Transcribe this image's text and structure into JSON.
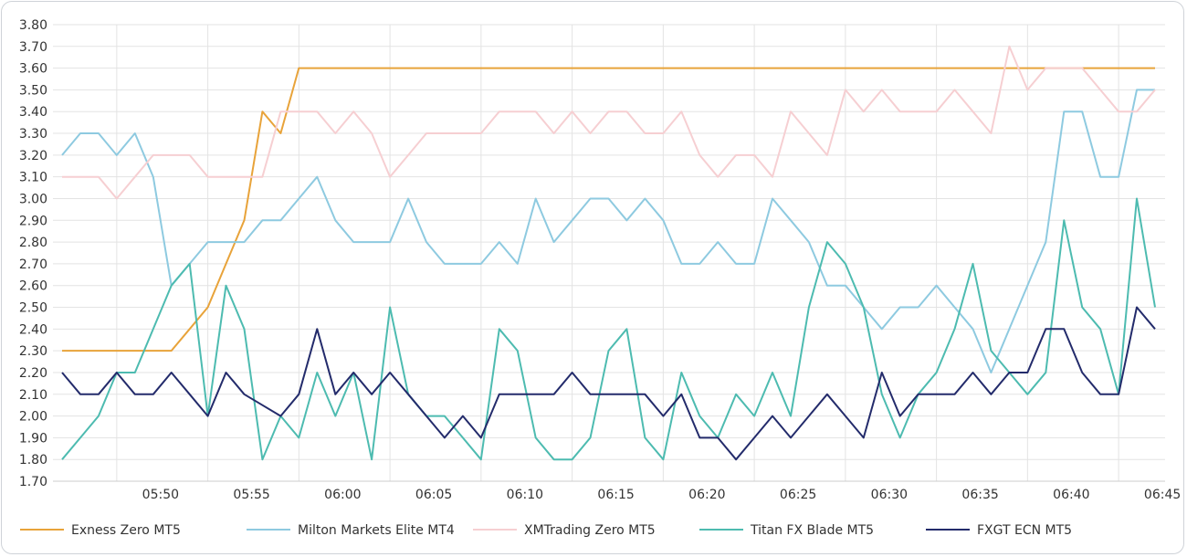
{
  "chart_data": {
    "type": "line",
    "title": "",
    "xlabel": "",
    "ylabel": "",
    "ylim": [
      1.7,
      3.8
    ],
    "y_tick_labels": [
      "1.70",
      "1.80",
      "1.90",
      "2.00",
      "2.10",
      "2.20",
      "2.30",
      "2.40",
      "2.50",
      "2.60",
      "2.70",
      "2.80",
      "2.90",
      "3.00",
      "3.10",
      "3.20",
      "3.30",
      "3.40",
      "3.50",
      "3.60",
      "3.70",
      "3.80"
    ],
    "x_tick_labels": [
      "05:50",
      "05:55",
      "06:00",
      "06:05",
      "06:10",
      "06:15",
      "06:20",
      "06:25",
      "06:30",
      "06:35",
      "06:40",
      "06:45"
    ],
    "x_start": "05:47",
    "x_step_minutes": 1,
    "grid": true,
    "legend_position": "bottom",
    "series": [
      {
        "name": "Exness Zero MT5",
        "color": "#e8a33a",
        "values": [
          2.3,
          2.3,
          2.3,
          2.3,
          2.3,
          2.3,
          2.3,
          2.4,
          2.5,
          2.7,
          2.9,
          3.4,
          3.3,
          3.6,
          3.6,
          3.6,
          3.6,
          3.6,
          3.6,
          3.6,
          3.6,
          3.6,
          3.6,
          3.6,
          3.6,
          3.6,
          3.6,
          3.6,
          3.6,
          3.6,
          3.6,
          3.6,
          3.6,
          3.6,
          3.6,
          3.6,
          3.6,
          3.6,
          3.6,
          3.6,
          3.6,
          3.6,
          3.6,
          3.6,
          3.6,
          3.6,
          3.6,
          3.6,
          3.6,
          3.6,
          3.6,
          3.6,
          3.6,
          3.6,
          3.6,
          3.6,
          3.6,
          3.6,
          3.6,
          3.6,
          3.6
        ]
      },
      {
        "name": "Milton Markets Elite MT4",
        "color": "#8ecae0",
        "values": [
          3.2,
          3.3,
          3.3,
          3.2,
          3.3,
          3.1,
          2.6,
          2.7,
          2.8,
          2.8,
          2.8,
          2.9,
          2.9,
          3.0,
          3.1,
          2.9,
          2.8,
          2.8,
          2.8,
          3.0,
          2.8,
          2.7,
          2.7,
          2.7,
          2.8,
          2.7,
          3.0,
          2.8,
          2.9,
          3.0,
          3.0,
          2.9,
          3.0,
          2.9,
          2.7,
          2.7,
          2.8,
          2.7,
          2.7,
          3.0,
          2.9,
          2.8,
          2.6,
          2.6,
          2.5,
          2.4,
          2.5,
          2.5,
          2.6,
          2.5,
          2.4,
          2.2,
          2.4,
          2.6,
          2.8,
          3.4,
          3.4,
          3.1,
          3.1,
          3.5,
          3.5
        ]
      },
      {
        "name": "XMTrading Zero MT5",
        "color": "#f6cfd2",
        "values": [
          3.1,
          3.1,
          3.1,
          3.0,
          3.1,
          3.2,
          3.2,
          3.2,
          3.1,
          3.1,
          3.1,
          3.1,
          3.4,
          3.4,
          3.4,
          3.3,
          3.4,
          3.3,
          3.1,
          3.2,
          3.3,
          3.3,
          3.3,
          3.3,
          3.4,
          3.4,
          3.4,
          3.3,
          3.4,
          3.3,
          3.4,
          3.4,
          3.3,
          3.3,
          3.4,
          3.2,
          3.1,
          3.2,
          3.2,
          3.1,
          3.4,
          3.3,
          3.2,
          3.5,
          3.4,
          3.5,
          3.4,
          3.4,
          3.4,
          3.5,
          3.4,
          3.3,
          3.7,
          3.5,
          3.6,
          3.6,
          3.6,
          3.5,
          3.4,
          3.4,
          3.5
        ]
      },
      {
        "name": "Titan FX Blade MT5",
        "color": "#4dbbb0",
        "values": [
          1.8,
          1.9,
          2.0,
          2.2,
          2.2,
          2.4,
          2.6,
          2.7,
          2.0,
          2.6,
          2.4,
          1.8,
          2.0,
          1.9,
          2.2,
          2.0,
          2.2,
          1.8,
          2.5,
          2.1,
          2.0,
          2.0,
          1.9,
          1.8,
          2.4,
          2.3,
          1.9,
          1.8,
          1.8,
          1.9,
          2.3,
          2.4,
          1.9,
          1.8,
          2.2,
          2.0,
          1.9,
          2.1,
          2.0,
          2.2,
          2.0,
          2.5,
          2.8,
          2.7,
          2.5,
          2.1,
          1.9,
          2.1,
          2.2,
          2.4,
          2.7,
          2.3,
          2.2,
          2.1,
          2.2,
          2.9,
          2.5,
          2.4,
          2.1,
          3.0,
          2.5
        ]
      },
      {
        "name": "FXGT ECN MT5",
        "color": "#232b6b",
        "values": [
          2.2,
          2.1,
          2.1,
          2.2,
          2.1,
          2.1,
          2.2,
          2.1,
          2.0,
          2.2,
          2.1,
          2.05,
          2.0,
          2.1,
          2.4,
          2.1,
          2.2,
          2.1,
          2.2,
          2.1,
          2.0,
          1.9,
          2.0,
          1.9,
          2.1,
          2.1,
          2.1,
          2.1,
          2.2,
          2.1,
          2.1,
          2.1,
          2.1,
          2.0,
          2.1,
          1.9,
          1.9,
          1.8,
          1.9,
          2.0,
          1.9,
          2.0,
          2.1,
          2.0,
          1.9,
          2.2,
          2.0,
          2.1,
          2.1,
          2.1,
          2.2,
          2.1,
          2.2,
          2.2,
          2.4,
          2.4,
          2.2,
          2.1,
          2.1,
          2.5,
          2.4
        ]
      }
    ]
  }
}
